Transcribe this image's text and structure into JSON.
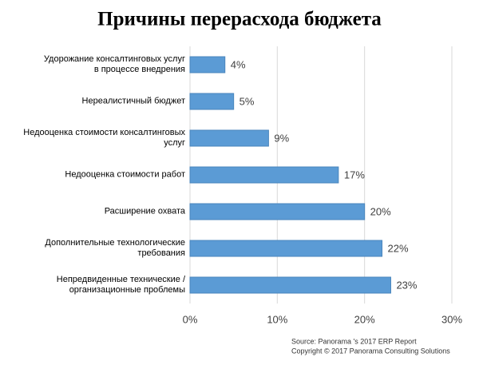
{
  "chart_data": {
    "type": "bar",
    "orientation": "horizontal",
    "title": "Причины перерасхода бюджета",
    "categories": [
      "Удорожание консалтинговых услуг\nв процессе внедрения",
      "Нереалистичный бюджет",
      "Недооценка стоимости консалтинговых\nуслуг",
      "Недооценка стоимости работ",
      "Расширение охвата",
      "Дополнительные технологические\nтребования",
      "Непредвиденные технические /\nорганизационные проблемы"
    ],
    "values": [
      4,
      5,
      9,
      17,
      20,
      22,
      23
    ],
    "value_labels": [
      "4%",
      "5%",
      "9%",
      "17%",
      "20%",
      "22%",
      "23%"
    ],
    "color": "#5b9bd5",
    "xlim": [
      0,
      30
    ],
    "xticks": [
      {
        "value": 0,
        "label": "0%"
      },
      {
        "value": 10,
        "label": "10%"
      },
      {
        "value": 20,
        "label": "20%"
      },
      {
        "value": 30,
        "label": "30%"
      }
    ],
    "grid": true,
    "notes": [
      "Source: Panorama 's 2017 ERP Report",
      "Copyright © 2017 Panorama Consulting Solutions"
    ]
  }
}
